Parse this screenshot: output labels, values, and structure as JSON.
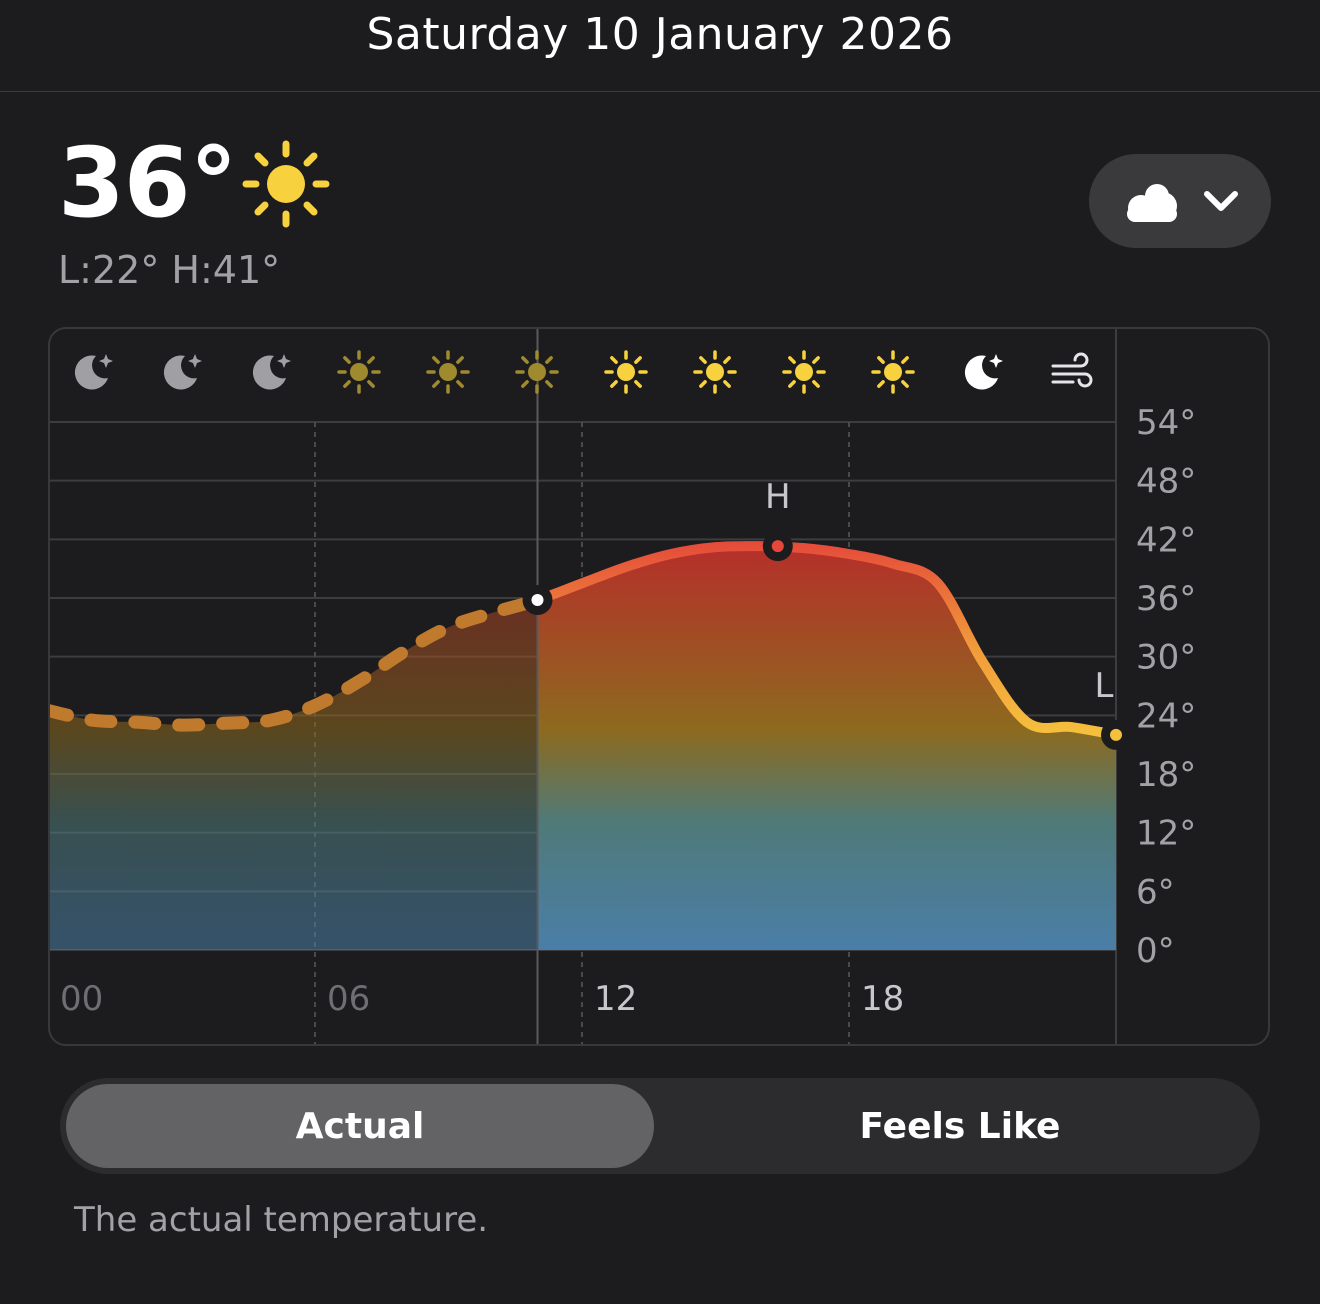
{
  "header": {
    "title": "Saturday 10 January 2026"
  },
  "current": {
    "temp": "36°",
    "icon": "sun-icon",
    "range": "L:22° H:41°"
  },
  "condition_button": {
    "icon": "cloud-icon",
    "chevron": "chevron-down-icon"
  },
  "segmented": {
    "options": [
      "Actual",
      "Feels Like"
    ],
    "selected": "Actual"
  },
  "description": "The actual temperature.",
  "colors": {
    "background": "#1c1c1e",
    "past_line": "#c07a2e",
    "line_hot": "#e5483a",
    "line_warm": "#f19a3b",
    "line_cool": "#f5c03c",
    "sun": "#f8d13f",
    "sun_dim": "#a08a2e",
    "moon": "#a0a0a4"
  },
  "chart_data": {
    "type": "area",
    "x_ticks": [
      "00",
      "06",
      "12",
      "18"
    ],
    "y_ticks": [
      "54°",
      "48°",
      "42°",
      "36°",
      "30°",
      "24°",
      "18°",
      "12°",
      "6°",
      "0°"
    ],
    "ylim": [
      0,
      54
    ],
    "xlim": [
      0,
      24
    ],
    "now_hour": 11,
    "hours": [
      0,
      1,
      2,
      3,
      4,
      5,
      6,
      7,
      8,
      9,
      10,
      11,
      12,
      13,
      14,
      15,
      16,
      17,
      18,
      19,
      20,
      21,
      22,
      23,
      24
    ],
    "temps": [
      24.5,
      23.5,
      23.3,
      23.0,
      23.2,
      23.5,
      25,
      27.5,
      30.5,
      33,
      34.5,
      35.8,
      37.5,
      39.2,
      40.5,
      41.2,
      41.3,
      41.1,
      40.5,
      39.5,
      37.5,
      29.5,
      23.3,
      22.8,
      22.0
    ],
    "high": {
      "label": "H",
      "hour": 16.4,
      "temp": 41.3
    },
    "low": {
      "label": "L",
      "hour": 24,
      "temp": 22
    },
    "hour_icons": [
      "moon-icon",
      "moon-icon",
      "moon-icon",
      "sun-dim-icon",
      "sun-dim-icon",
      "sun-dim-icon",
      "sun-icon",
      "sun-icon",
      "sun-icon",
      "sun-icon",
      "moon-bright-icon",
      "wind-icon"
    ]
  }
}
